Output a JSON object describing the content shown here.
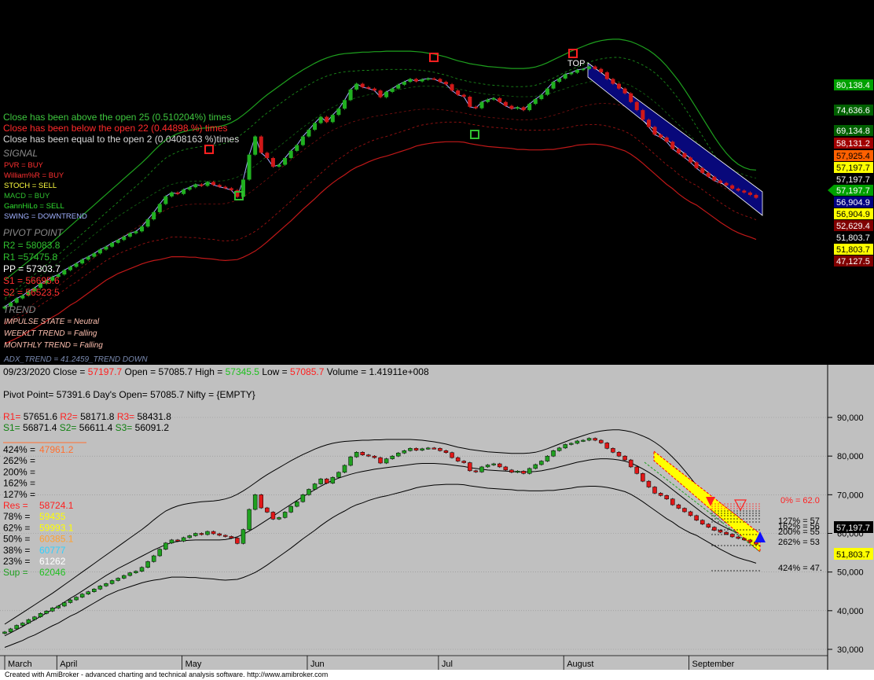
{
  "top_pane": {
    "stats": [
      {
        "text": "Close has been above the open 25 (0.510204%) times",
        "color": "#3ec63e"
      },
      {
        "text": "Close has been below the open 22 (0.44898 %) times",
        "color": "#ff2a2a"
      },
      {
        "text": "Close has been equal to the open 2 (0.0408163 %)times",
        "color": "#d8d8d8"
      }
    ],
    "signal_heading": "SIGNAL",
    "signals": [
      {
        "text": "PVR = BUY",
        "color": "#ff3030"
      },
      {
        "text": "William%R = BUY",
        "color": "#ff3030"
      },
      {
        "text": "STOCH = SELL",
        "color": "#ffff40"
      },
      {
        "text": "MACD = BUY",
        "color": "#30c030"
      },
      {
        "text": "GannHiLo = SELL",
        "color": "#30e030"
      },
      {
        "text": "SWING = DOWNTREND",
        "color": "#a0b0ff"
      }
    ],
    "pivot_heading": "PIVOT POINT",
    "pivots": [
      {
        "text": "R2 = 58083.8",
        "color": "#30c030"
      },
      {
        "text": "R1 =57475.8",
        "color": "#30c030"
      },
      {
        "text": "PP = 57303.7",
        "color": "#ffffff"
      },
      {
        "text": "S1 = 56695.6",
        "color": "#ff3030"
      },
      {
        "text": "S2 = 56523.5",
        "color": "#ff3030"
      }
    ],
    "trend_heading": "TREND",
    "trends": [
      {
        "text": "IMPULSE STATE = Neutral",
        "color": "#ffc0b0"
      },
      {
        "text": "WEEKLT TREND = Falling",
        "color": "#ffc0b0"
      },
      {
        "text": "MONTHLY TREND = Falling",
        "color": "#ffc0b0"
      }
    ],
    "adx": "ADX_TREND = 41.2459_TREND DOWN",
    "top_marker": "TOP",
    "price_tags": [
      {
        "text": "80,138.4",
        "bg": "#00a000",
        "fg": "#ffffff"
      },
      {
        "text": "74,636.6",
        "bg": "#006000",
        "fg": "#ffffff"
      },
      {
        "text": "69,134.8",
        "bg": "#006000",
        "fg": "#ffffff"
      },
      {
        "text": "58,131.2",
        "bg": "#a00000",
        "fg": "#ffffff"
      },
      {
        "text": "57,925.4",
        "bg": "#ff6000",
        "fg": "#000000"
      },
      {
        "text": "57,197.7",
        "bg": "#ffff00",
        "fg": "#000000"
      },
      {
        "text": "57,197.7",
        "bg": "#000000",
        "fg": "#ffffff"
      },
      {
        "text": "57,197.7",
        "bg": "#00a000",
        "fg": "#ffffff"
      },
      {
        "text": "56,904.9",
        "bg": "#000080",
        "fg": "#ffffff"
      },
      {
        "text": "56,904.9",
        "bg": "#ffff00",
        "fg": "#000000"
      },
      {
        "text": "52,629.4",
        "bg": "#800000",
        "fg": "#ffffff"
      },
      {
        "text": "51,803.7",
        "bg": "#000000",
        "fg": "#ffffff"
      },
      {
        "text": "51,803.7",
        "bg": "#ffff00",
        "fg": "#000000"
      },
      {
        "text": "47,127.5",
        "bg": "#800000",
        "fg": "#ffffff"
      }
    ]
  },
  "bottom_pane": {
    "header": {
      "date": "09/23/2020",
      "close_label": "Close =",
      "close": "57197.7",
      "open_label": "Open =",
      "open": "57085.7",
      "high_label": "High =",
      "high": "57345.5",
      "low_label": "Low =",
      "low": "57085.7",
      "volume_label": "Volume =",
      "volume": "1.41911e+008"
    },
    "pivot_line": {
      "pivot": "Pivot Point= 57391.6",
      "days_open": "Day's Open= 57085.7",
      "nifty": "Nifty = {EMPTY}"
    },
    "r_levels": [
      {
        "label": "R1=",
        "value": "57651.6"
      },
      {
        "label": "R2=",
        "value": "58171.8"
      },
      {
        "label": "R3=",
        "value": "58431.8"
      }
    ],
    "s_levels": [
      {
        "label": "S1=",
        "value": "56871.4"
      },
      {
        "label": "S2=",
        "value": "56611.4"
      },
      {
        "label": "S3=",
        "value": "56091.2"
      }
    ],
    "fib_table": [
      {
        "label": "424% =",
        "value": "47961.2",
        "color": "#ff7030"
      },
      {
        "label": "262% =",
        "value": "",
        "color": "#000000"
      },
      {
        "label": "200% =",
        "value": "",
        "color": "#000000"
      },
      {
        "label": "162% =",
        "value": "",
        "color": "#000000"
      },
      {
        "label": "127% =",
        "value": "",
        "color": "#000000"
      },
      {
        "label": "Res   =",
        "value": "58724.1",
        "color": "#ff2020"
      },
      {
        "label": "78%  =",
        "value": "59435",
        "color": "#ffff00"
      },
      {
        "label": "62%  =",
        "value": "59993.1",
        "color": "#ffff00"
      },
      {
        "label": "50%  =",
        "value": "60385.1",
        "color": "#ffa030"
      },
      {
        "label": "38%  =",
        "value": "60777",
        "color": "#30d0ff"
      },
      {
        "label": "23%  =",
        "value": "61262",
        "color": "#ffffff"
      },
      {
        "label": "Sup  =",
        "value": "62046",
        "color": "#20c020"
      }
    ],
    "fib_right": [
      "0% = 62.0",
      "127% = 57",
      "162% = 56",
      "200% = 55",
      "262% = 53",
      "424% = 47."
    ],
    "last_price_tag": "57,197.7",
    "last_low_tag": "51,803.7"
  },
  "footer": "Created with AmiBroker - advanced charting and technical analysis software. http://www.amibroker.com",
  "chart_data": {
    "type": "candlestick",
    "ylim": [
      30000,
      90000
    ],
    "y_ticks": [
      30000,
      40000,
      50000,
      60000,
      70000,
      80000,
      90000
    ],
    "y_tick_labels": [
      "30,000",
      "40,000",
      "50,000",
      "60,000",
      "70,000",
      "80,000",
      "90,000"
    ],
    "months": [
      {
        "label": "March",
        "index": 0
      },
      {
        "label": "April",
        "index": 9
      },
      {
        "label": "May",
        "index": 30
      },
      {
        "label": "Jun",
        "index": 51
      },
      {
        "label": "Jul",
        "index": 73
      },
      {
        "label": "August",
        "index": 94
      },
      {
        "label": "September",
        "index": 115
      }
    ],
    "close": [
      34500,
      35300,
      36200,
      36800,
      37700,
      38400,
      39300,
      39900,
      40700,
      41200,
      42100,
      42800,
      43500,
      44300,
      44900,
      45600,
      46400,
      47000,
      47800,
      48400,
      49100,
      49800,
      50200,
      51200,
      52700,
      54200,
      55900,
      57500,
      58300,
      58000,
      58900,
      59400,
      60000,
      59700,
      60500,
      59900,
      59500,
      59200,
      58800,
      57400,
      61000,
      66200,
      70000,
      66600,
      65500,
      63700,
      64100,
      65500,
      67000,
      68200,
      70000,
      71400,
      72800,
      74100,
      73000,
      74500,
      75800,
      77600,
      79800,
      81000,
      80300,
      80000,
      79600,
      78200,
      79300,
      80000,
      80800,
      81400,
      82000,
      81500,
      81900,
      82100,
      82000,
      81400,
      80900,
      79600,
      78700,
      78300,
      76200,
      75900,
      77200,
      77700,
      78000,
      77200,
      76400,
      75800,
      76100,
      75500,
      76800,
      77800,
      78700,
      80000,
      81400,
      82100,
      83000,
      83300,
      83900,
      84100,
      84600,
      84100,
      83400,
      82000,
      81000,
      80000,
      79000,
      77200,
      75500,
      73500,
      72000,
      70400,
      69800,
      68900,
      67400,
      66500,
      65600,
      64600,
      63400,
      62400,
      61600,
      60800,
      60300,
      59800,
      59100,
      58700,
      58300,
      57800,
      57197.7
    ],
    "bands": {
      "upper": [
        36500,
        37500,
        38500,
        39500,
        40500,
        41500,
        42500,
        43500,
        44500,
        45600,
        46700,
        47800,
        48900,
        50000,
        51100,
        52200,
        53300,
        54400,
        55500,
        56600,
        57700,
        58800,
        59900,
        61000,
        62200,
        63500,
        64700,
        65800,
        66500,
        67100,
        67500,
        67800,
        68000,
        68200,
        68300,
        68400,
        68600,
        68900,
        69400,
        70100,
        71000,
        72000,
        73100,
        74200,
        75200,
        76100,
        77000,
        77900,
        78800,
        79600,
        80400,
        81100,
        81800,
        82400,
        82900,
        83300,
        83600,
        83800,
        83900,
        84000,
        84100,
        84100,
        84200,
        84200,
        84300,
        84300,
        84300,
        84300,
        84300,
        84200,
        84100,
        83900,
        83700,
        83400,
        83100,
        82700,
        82300,
        82000,
        81700,
        81500,
        81300,
        81100,
        81000,
        80900,
        80800,
        80700,
        80700,
        80700,
        80800,
        81000,
        81400,
        81900,
        82500,
        83100,
        83700,
        84300,
        84800,
        85300,
        85800,
        86200,
        86500,
        86700,
        86800,
        86800,
        86600,
        86300,
        85800,
        85200,
        84500,
        83600,
        82500,
        81200,
        79700,
        78100,
        76300,
        74400,
        72400,
        70400,
        68400,
        66400,
        64600,
        63000,
        61700,
        60700,
        60000,
        59600,
        59500
      ],
      "middle": [
        33500,
        34300,
        35100,
        35900,
        36800,
        37600,
        38500,
        39400,
        40300,
        41200,
        42200,
        43200,
        44100,
        45100,
        46100,
        47100,
        48100,
        49100,
        50000,
        50900,
        51700,
        52500,
        53300,
        54100,
        54900,
        55700,
        56400,
        57100,
        57600,
        57900,
        58100,
        58200,
        58300,
        58300,
        58300,
        58300,
        58300,
        58400,
        58700,
        59100,
        59800,
        60600,
        61500,
        62500,
        63500,
        64500,
        65500,
        66500,
        67500,
        68500,
        69500,
        70400,
        71300,
        72200,
        73000,
        73700,
        74300,
        74800,
        75300,
        75700,
        76000,
        76300,
        76600,
        76800,
        77000,
        77200,
        77400,
        77600,
        77800,
        78000,
        78100,
        78100,
        78100,
        78000,
        77900,
        77700,
        77500,
        77300,
        77000,
        76800,
        76600,
        76400,
        76300,
        76200,
        76100,
        76000,
        75900,
        75900,
        75900,
        76000,
        76200,
        76500,
        76800,
        77200,
        77600,
        78000,
        78400,
        78700,
        79000,
        79200,
        79300,
        79300,
        79200,
        79000,
        78700,
        78200,
        77500,
        76700,
        75800,
        74800,
        73700,
        72500,
        71300,
        70100,
        68900,
        67700,
        66500,
        65300,
        64200,
        63100,
        62200,
        61400,
        60700,
        60100,
        59600,
        59200,
        58900
      ],
      "lower": [
        30500,
        31100,
        31700,
        32300,
        33100,
        33700,
        34500,
        35300,
        36100,
        36800,
        37700,
        38600,
        39300,
        40200,
        41100,
        42000,
        42900,
        43800,
        44500,
        45200,
        45700,
        46200,
        46700,
        47200,
        47600,
        47900,
        48100,
        48400,
        48700,
        48700,
        48700,
        48600,
        48600,
        48400,
        48300,
        48200,
        48000,
        47900,
        48000,
        48100,
        48600,
        49200,
        49900,
        50800,
        51800,
        52900,
        54000,
        55100,
        56200,
        57400,
        58600,
        59700,
        60800,
        62000,
        63100,
        64100,
        65000,
        65800,
        66700,
        67400,
        67900,
        68500,
        69000,
        69400,
        69700,
        70100,
        70500,
        70900,
        71300,
        71800,
        72100,
        72300,
        72500,
        72600,
        72700,
        72700,
        72700,
        72600,
        72300,
        72100,
        71900,
        71700,
        71600,
        71500,
        71400,
        71300,
        71100,
        71100,
        71000,
        71000,
        71000,
        71100,
        71100,
        71300,
        71500,
        71700,
        72000,
        72100,
        72200,
        72200,
        72100,
        71900,
        71600,
        71200,
        70800,
        70100,
        69200,
        68200,
        67100,
        66000,
        64900,
        63800,
        62900,
        61800,
        60900,
        60100,
        59500,
        58600,
        57700,
        56800,
        55900,
        55100,
        54300,
        53700,
        53200,
        52800,
        52300
      ]
    }
  }
}
